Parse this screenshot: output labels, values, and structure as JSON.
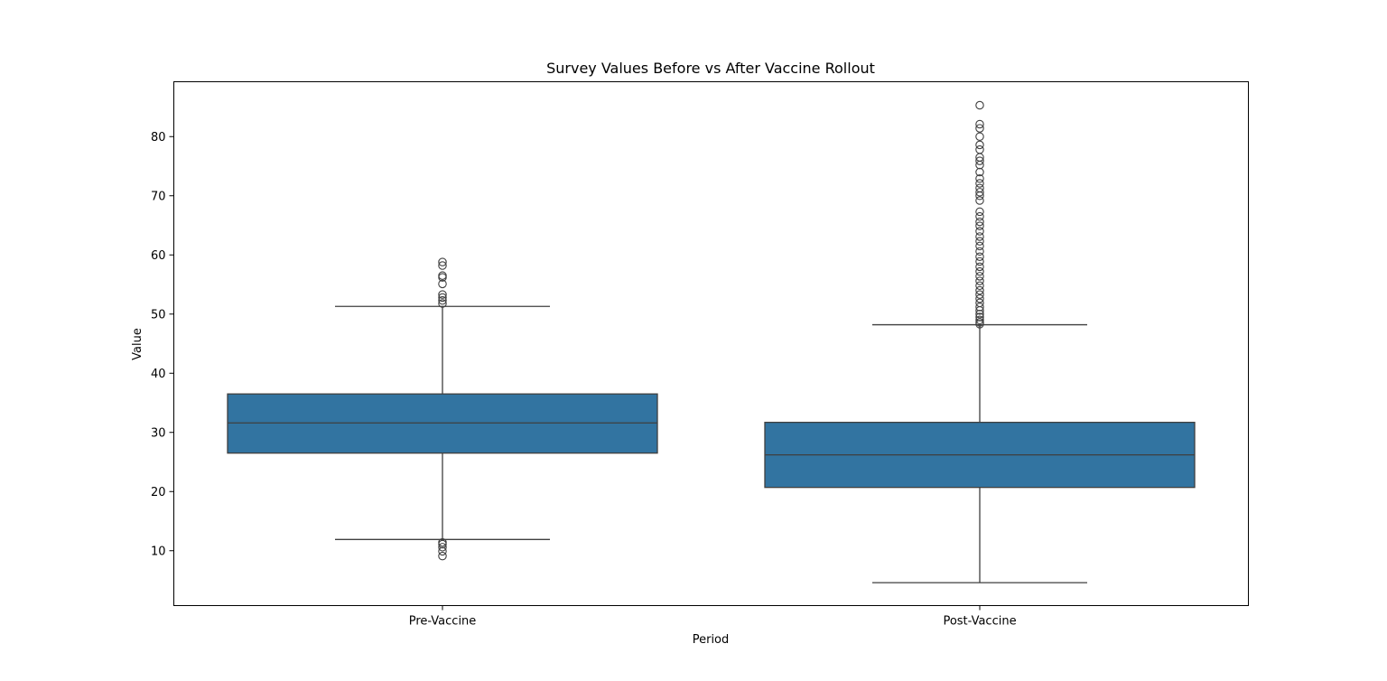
{
  "chart_data": {
    "type": "box",
    "title": "Survey Values Before vs After Vaccine Rollout",
    "xlabel": "Period",
    "ylabel": "Value",
    "ylim": [
      1,
      89
    ],
    "yticks": [
      10,
      20,
      30,
      40,
      50,
      60,
      70,
      80
    ],
    "grid": false,
    "box_color": "#3274a1",
    "line_color": "#3f3f3f",
    "categories": [
      "Pre-Vaccine",
      "Post-Vaccine"
    ],
    "boxes": [
      {
        "category": "Pre-Vaccine",
        "whisker_low": 11.9,
        "q1": 26.5,
        "median": 31.6,
        "q3": 36.5,
        "whisker_high": 51.3,
        "outliers": [
          9.1,
          9.9,
          10.6,
          11.1,
          11.4,
          51.8,
          52.3,
          52.8,
          53.3,
          55.1,
          56.2,
          56.5,
          58.2,
          58.8
        ]
      },
      {
        "category": "Post-Vaccine",
        "whisker_low": 4.6,
        "q1": 20.7,
        "median": 26.2,
        "q3": 31.7,
        "whisker_high": 48.2,
        "outliers": [
          48.3,
          48.6,
          49.0,
          49.5,
          50.0,
          50.6,
          51.2,
          51.9,
          52.6,
          53.3,
          54.0,
          54.8,
          55.6,
          56.4,
          57.2,
          58.0,
          58.9,
          59.7,
          60.6,
          61.5,
          62.3,
          63.1,
          64.0,
          64.9,
          65.6,
          66.5,
          67.3,
          69.2,
          70.0,
          70.6,
          71.3,
          72.1,
          72.9,
          74.0,
          75.2,
          75.9,
          76.5,
          77.8,
          78.6,
          80.0,
          81.4,
          82.1,
          85.3
        ]
      }
    ]
  }
}
